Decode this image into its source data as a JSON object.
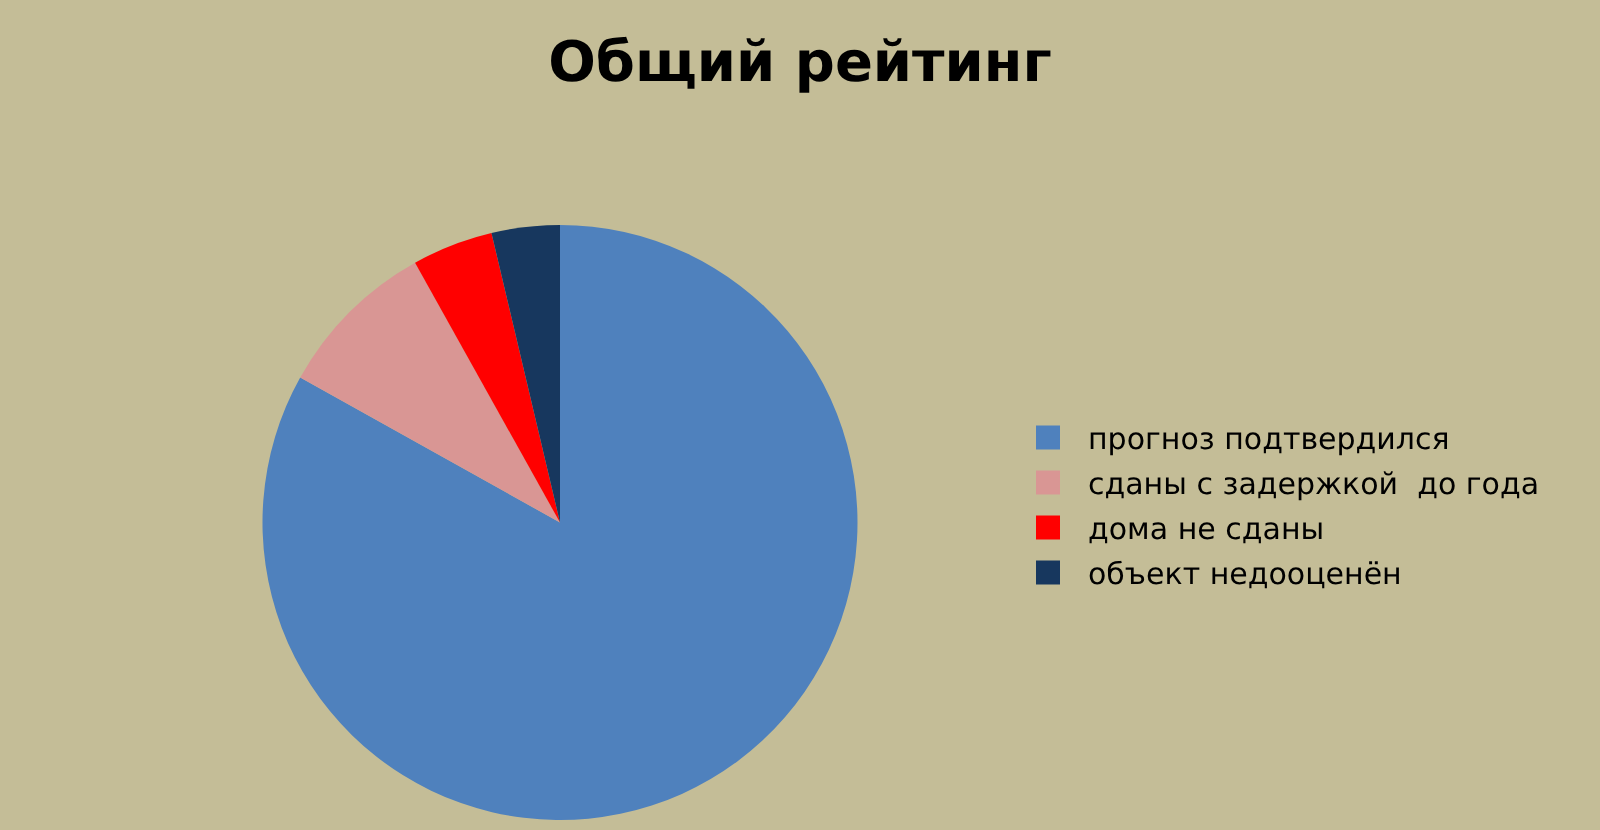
{
  "chart_data": {
    "type": "pie",
    "title": "Общий рейтинг",
    "categories": [
      "прогноз подтвердился",
      "сданы с задержкой  до года",
      "дома не сданы",
      "объект недооценён"
    ],
    "values": [
      83.1,
      8.8,
      4.4,
      3.7
    ],
    "colors": [
      "#4f81bd",
      "#d99694",
      "#ff0000",
      "#17375e"
    ],
    "legend": "right"
  }
}
